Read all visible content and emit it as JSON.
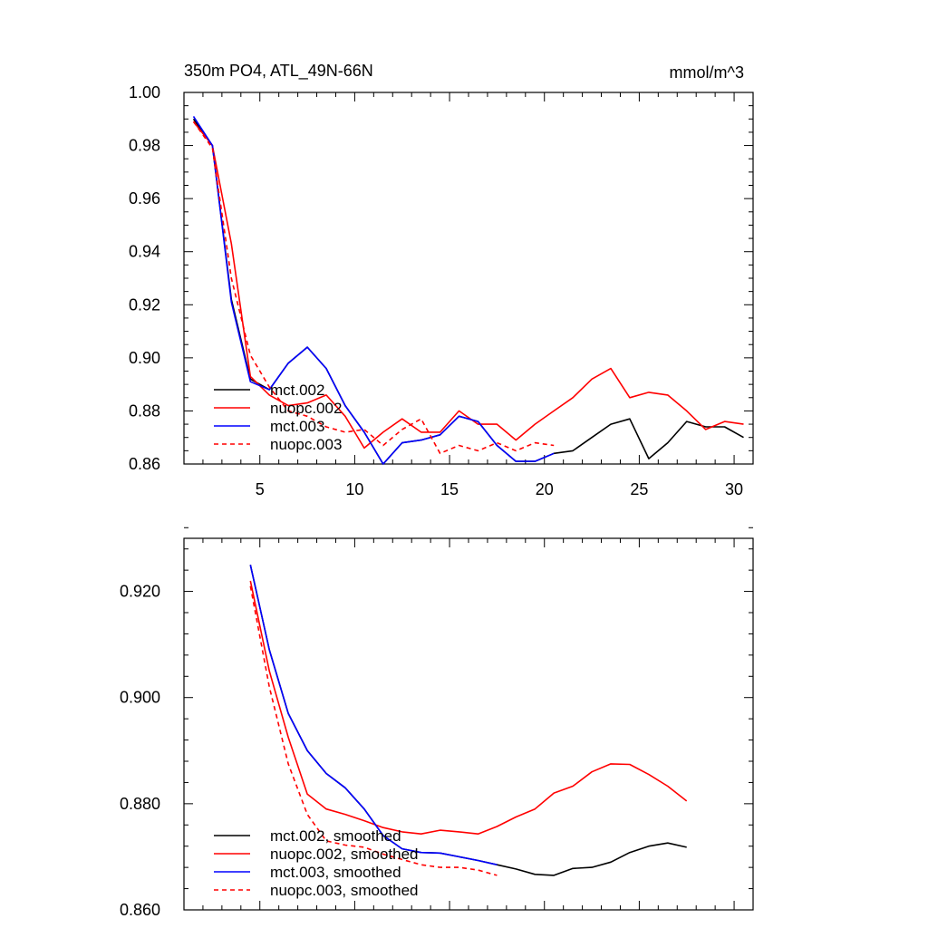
{
  "chart_data": [
    {
      "type": "line",
      "title": "350m PO4, ATL_49N-66N",
      "units": "mmol/m^3",
      "xlim": [
        1,
        31
      ],
      "ylim": [
        0.86,
        1.0
      ],
      "xticks": [
        5,
        10,
        15,
        20,
        25,
        30
      ],
      "xtick_labels": [
        "5",
        "10",
        "15",
        "20",
        "25",
        "30"
      ],
      "yticks": [
        0.86,
        0.88,
        0.9,
        0.92,
        0.94,
        0.96,
        0.98,
        1.0
      ],
      "ytick_labels": [
        "0.86",
        "0.88",
        "0.90",
        "0.92",
        "0.94",
        "0.96",
        "0.98",
        "1.00"
      ],
      "legend_position": "bottom-left",
      "grid": false,
      "series": [
        {
          "name": "mct.002",
          "color": "#000000",
          "dash": "solid",
          "x": [
            1.5,
            2.5,
            3.5,
            4.5,
            5.5,
            6.5,
            7.5,
            8.5,
            9.5,
            10.5,
            11.5,
            12.5,
            13.5,
            14.5,
            15.5,
            16.5,
            17.5,
            18.5,
            19.5,
            20.5,
            21.5,
            22.5,
            23.5,
            24.5,
            25.5,
            26.5,
            27.5,
            28.5,
            29.5,
            30.5
          ],
          "y": [
            0.99,
            0.98,
            0.922,
            0.892,
            0.888,
            0.898,
            0.904,
            0.896,
            0.882,
            0.872,
            0.86,
            0.868,
            0.869,
            0.871,
            0.878,
            0.876,
            0.867,
            0.861,
            0.861,
            0.864,
            0.865,
            0.87,
            0.875,
            0.877,
            0.862,
            0.868,
            0.876,
            0.874,
            0.874,
            0.87
          ]
        },
        {
          "name": "nuopc.002",
          "color": "#ff0000",
          "dash": "solid",
          "x": [
            1.5,
            2.5,
            3.5,
            4.5,
            5.5,
            6.5,
            7.5,
            8.5,
            9.5,
            10.5,
            11.5,
            12.5,
            13.5,
            14.5,
            15.5,
            16.5,
            17.5,
            18.5,
            19.5,
            20.5,
            21.5,
            22.5,
            23.5,
            24.5,
            25.5,
            26.5,
            27.5,
            28.5,
            29.5,
            30.5
          ],
          "y": [
            0.989,
            0.98,
            0.943,
            0.893,
            0.886,
            0.882,
            0.883,
            0.886,
            0.878,
            0.866,
            0.872,
            0.877,
            0.872,
            0.872,
            0.88,
            0.875,
            0.875,
            0.869,
            0.875,
            0.88,
            0.885,
            0.892,
            0.896,
            0.885,
            0.887,
            0.886,
            0.88,
            0.873,
            0.876,
            0.875
          ]
        },
        {
          "name": "mct.003",
          "color": "#0000ff",
          "dash": "solid",
          "x": [
            1.5,
            2.5,
            3.5,
            4.5,
            5.5,
            6.5,
            7.5,
            8.5,
            9.5,
            10.5,
            11.5,
            12.5,
            13.5,
            14.5,
            15.5,
            16.5,
            17.5,
            18.5,
            19.5,
            20.5
          ],
          "y": [
            0.991,
            0.98,
            0.921,
            0.891,
            0.888,
            0.898,
            0.904,
            0.896,
            0.882,
            0.872,
            0.86,
            0.868,
            0.869,
            0.871,
            0.878,
            0.876,
            0.867,
            0.861,
            0.861,
            0.864
          ]
        },
        {
          "name": "nuopc.003",
          "color": "#ff0000",
          "dash": "dashed",
          "x": [
            1.5,
            2.5,
            3.5,
            4.5,
            5.5,
            6.5,
            7.5,
            8.5,
            9.5,
            10.5,
            11.5,
            12.5,
            13.5,
            14.5,
            15.5,
            16.5,
            17.5,
            18.5,
            19.5,
            20.5
          ],
          "y": [
            0.989,
            0.979,
            0.93,
            0.901,
            0.889,
            0.88,
            0.878,
            0.874,
            0.872,
            0.873,
            0.867,
            0.873,
            0.877,
            0.864,
            0.867,
            0.865,
            0.868,
            0.865,
            0.868,
            0.867
          ]
        }
      ]
    },
    {
      "type": "line",
      "title": "",
      "xlim": [
        1,
        31
      ],
      "ylim": [
        0.86,
        0.93
      ],
      "xticks": [
        5,
        10,
        15,
        20,
        25,
        30
      ],
      "yticks": [
        0.86,
        0.88,
        0.9,
        0.92
      ],
      "ytick_labels": [
        "0.860",
        "0.880",
        "0.900",
        "0.920"
      ],
      "legend_position": "bottom-left",
      "grid": false,
      "series": [
        {
          "name": "mct.002, smoothed",
          "color": "#000000",
          "dash": "solid",
          "x": [
            4.5,
            5.5,
            6.5,
            7.5,
            8.5,
            9.5,
            10.5,
            11.5,
            12.5,
            13.5,
            14.5,
            15.5,
            16.5,
            17.5,
            18.5,
            19.5,
            20.5,
            21.5,
            22.5,
            23.5,
            24.5,
            25.5,
            26.5,
            27.5
          ],
          "y": [
            0.925,
            0.909,
            0.897,
            0.89,
            0.8857,
            0.883,
            0.879,
            0.874,
            0.8715,
            0.8708,
            0.8707,
            0.87,
            0.8693,
            0.8685,
            0.8677,
            0.8667,
            0.8665,
            0.8678,
            0.868,
            0.869,
            0.8708,
            0.872,
            0.8726,
            0.8718
          ]
        },
        {
          "name": "nuopc.002, smoothed",
          "color": "#ff0000",
          "dash": "solid",
          "x": [
            4.5,
            5.5,
            6.5,
            7.5,
            8.5,
            9.5,
            10.5,
            11.5,
            12.5,
            13.5,
            14.5,
            15.5,
            16.5,
            17.5,
            18.5,
            19.5,
            20.5,
            21.5,
            22.5,
            23.5,
            24.5,
            25.5,
            26.5,
            27.5
          ],
          "y": [
            0.922,
            0.905,
            0.8925,
            0.8818,
            0.879,
            0.878,
            0.8768,
            0.8755,
            0.8747,
            0.8743,
            0.875,
            0.8747,
            0.8743,
            0.8757,
            0.8775,
            0.879,
            0.882,
            0.8833,
            0.886,
            0.8875,
            0.8874,
            0.8855,
            0.8833,
            0.8805
          ]
        },
        {
          "name": "mct.003, smoothed",
          "color": "#0000ff",
          "dash": "solid",
          "x": [
            4.5,
            5.5,
            6.5,
            7.5,
            8.5,
            9.5,
            10.5,
            11.5,
            12.5,
            13.5,
            14.5,
            15.5,
            16.5,
            17.5
          ],
          "y": [
            0.925,
            0.909,
            0.897,
            0.89,
            0.8857,
            0.883,
            0.879,
            0.874,
            0.8715,
            0.8708,
            0.8707,
            0.87,
            0.8693,
            0.8685
          ]
        },
        {
          "name": "nuopc.003, smoothed",
          "color": "#ff0000",
          "dash": "dashed",
          "x": [
            4.5,
            5.5,
            6.5,
            7.5,
            8.5,
            9.5,
            10.5,
            11.5,
            12.5,
            13.5,
            14.5,
            15.5,
            16.5,
            17.5
          ],
          "y": [
            0.921,
            0.902,
            0.8875,
            0.878,
            0.873,
            0.8722,
            0.8718,
            0.8705,
            0.8695,
            0.8685,
            0.868,
            0.868,
            0.8675,
            0.8665
          ]
        }
      ]
    }
  ]
}
